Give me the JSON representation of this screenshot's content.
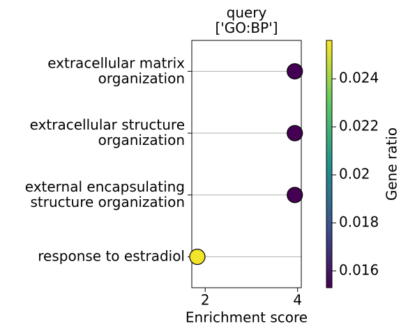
{
  "chart_data": {
    "type": "dotplot",
    "title": "query\n['GO:BP']",
    "xlabel": "Enrichment score",
    "categories": [
      "extracellular matrix\norganization",
      "extracellular structure\norganization",
      "external encapsulating\nstructure organization",
      "response to estradiol"
    ],
    "values": [
      3.94,
      3.94,
      3.94,
      1.83
    ],
    "color_values": [
      0.0153,
      0.0153,
      0.0153,
      0.0254
    ],
    "xlim": [
      1.71,
      4.08
    ],
    "xticks": [
      2,
      4
    ],
    "colorbar": {
      "label": "Gene ratio",
      "colormap": "viridis",
      "lim": [
        0.0153,
        0.0256
      ],
      "ticks": [
        0.016,
        0.018,
        0.02,
        0.022,
        0.024
      ]
    },
    "grid": true
  }
}
